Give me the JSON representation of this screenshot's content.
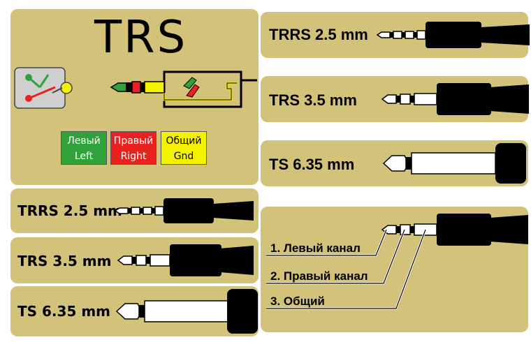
{
  "trs_panel": {
    "title": "TRS",
    "legend": [
      {
        "line1": "Левый",
        "line2": "Left",
        "bg": "#2fa33a",
        "fg": "#ffffff"
      },
      {
        "line1": "Правый",
        "line2": "Right",
        "bg": "#e8231f",
        "fg": "#ffffff"
      },
      {
        "line1": "Общий",
        "line2": "Gnd",
        "bg": "#f5f200",
        "fg": "#000000"
      }
    ]
  },
  "top_right": [
    {
      "label": "TRRS 2.5 mm"
    },
    {
      "label": "TRS 3.5 mm"
    },
    {
      "label": "TS 6.35 mm"
    }
  ],
  "left_list": [
    {
      "label": "TRRS 2.5 mm"
    },
    {
      "label": "TRS 3.5 mm"
    },
    {
      "label": "TS 6.35 mm"
    }
  ],
  "channels": [
    {
      "label": "1. Левый канал"
    },
    {
      "label": "2. Правый канал"
    },
    {
      "label": "3. Общий"
    }
  ],
  "colors": {
    "panel": "#d2c27a",
    "plug": "#000000",
    "green": "#2fa33a",
    "red": "#e8231f",
    "yellow": "#f5f200"
  }
}
